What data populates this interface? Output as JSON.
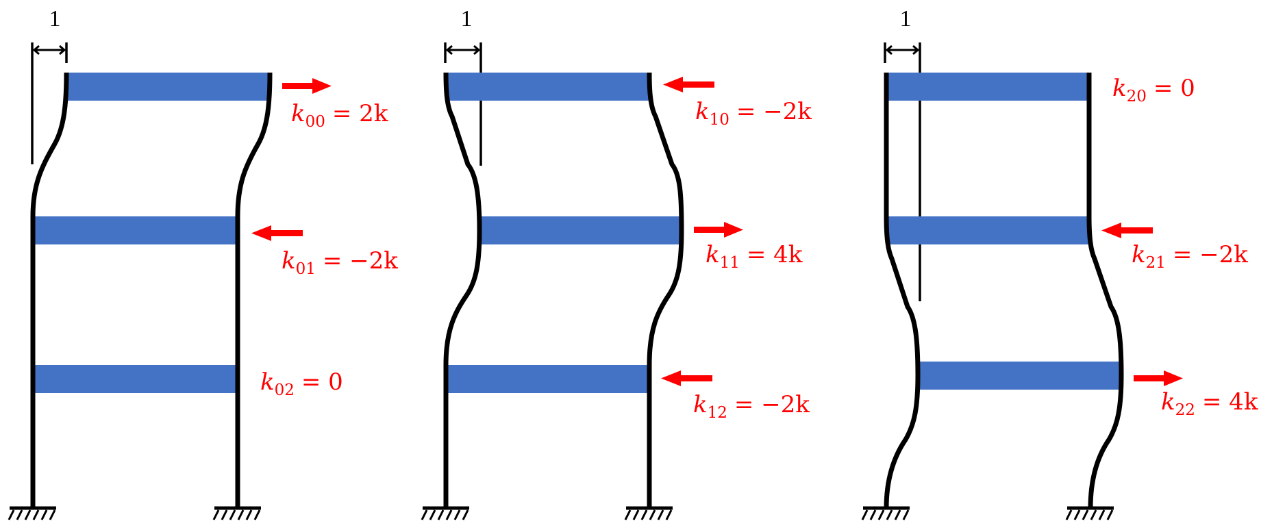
{
  "colors": {
    "beam": "#4472C4",
    "arrow": "#FF0000",
    "frame": "#000000"
  },
  "frames": [
    {
      "dimension_label": "1",
      "coefficients": [
        {
          "symbol": "k",
          "subscript": "00",
          "rhs": "= 2k",
          "arrow": "right"
        },
        {
          "symbol": "k",
          "subscript": "01",
          "rhs": "= −2k",
          "arrow": "left"
        },
        {
          "symbol": "k",
          "subscript": "02",
          "rhs": "= 0",
          "arrow": "none"
        }
      ]
    },
    {
      "dimension_label": "1",
      "coefficients": [
        {
          "symbol": "k",
          "subscript": "10",
          "rhs": "= −2k",
          "arrow": "left"
        },
        {
          "symbol": "k",
          "subscript": "11",
          "rhs": "= 4k",
          "arrow": "right"
        },
        {
          "symbol": "k",
          "subscript": "12",
          "rhs": "= −2k",
          "arrow": "left"
        }
      ]
    },
    {
      "dimension_label": "1",
      "coefficients": [
        {
          "symbol": "k",
          "subscript": "20",
          "rhs": "= 0",
          "arrow": "none"
        },
        {
          "symbol": "k",
          "subscript": "21",
          "rhs": "= −2k",
          "arrow": "left"
        },
        {
          "symbol": "k",
          "subscript": "22",
          "rhs": "= 4k",
          "arrow": "right"
        }
      ]
    }
  ]
}
